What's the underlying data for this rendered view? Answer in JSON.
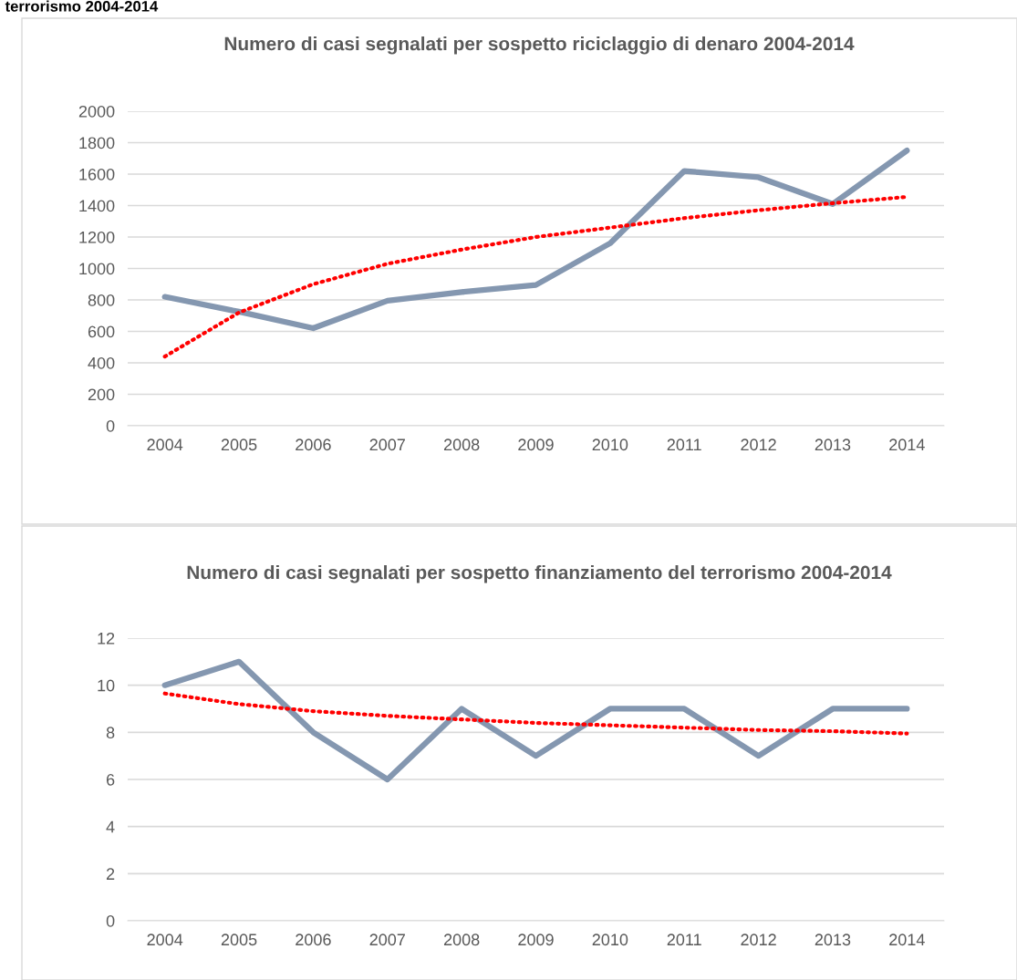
{
  "chart_data": [
    {
      "type": "line",
      "title": "Numero di casi segnalati per sospetto riciclaggio di denaro 2004-2014",
      "annotations": [
        "terrorismo 2004-2014"
      ],
      "categories": [
        "2004",
        "2005",
        "2006",
        "2007",
        "2008",
        "2009",
        "2010",
        "2011",
        "2012",
        "2013",
        "2014"
      ],
      "series": [
        {
          "color": "#8497b0",
          "line_style": "solid",
          "values": [
            820,
            725,
            620,
            795,
            850,
            895,
            1160,
            1620,
            1580,
            1410,
            1750
          ]
        },
        {
          "color": "#ff0000",
          "line_style": "dotted",
          "values": [
            440,
            720,
            900,
            1030,
            1120,
            1200,
            1260,
            1320,
            1370,
            1415,
            1455
          ]
        }
      ],
      "ylim": [
        0,
        2000
      ],
      "yticks": [
        0,
        200,
        400,
        600,
        800,
        1000,
        1200,
        1400,
        1600,
        1800,
        2000
      ],
      "grid": "y"
    },
    {
      "type": "line",
      "title": "Numero di casi segnalati per sospetto finanziamento del terrorismo 2004-2014",
      "categories": [
        "2004",
        "2005",
        "2006",
        "2007",
        "2008",
        "2009",
        "2010",
        "2011",
        "2012",
        "2013",
        "2014"
      ],
      "series": [
        {
          "color": "#8497b0",
          "line_style": "solid",
          "values": [
            10,
            11,
            8,
            6,
            9,
            7,
            9,
            9,
            7,
            9,
            9
          ]
        },
        {
          "color": "#ff0000",
          "line_style": "dotted",
          "values": [
            9.65,
            9.2,
            8.9,
            8.7,
            8.55,
            8.4,
            8.3,
            8.2,
            8.1,
            8.05,
            7.95
          ]
        }
      ],
      "ylim": [
        0,
        12
      ],
      "yticks": [
        0,
        2,
        4,
        6,
        8,
        10,
        12
      ],
      "grid": "y"
    }
  ]
}
